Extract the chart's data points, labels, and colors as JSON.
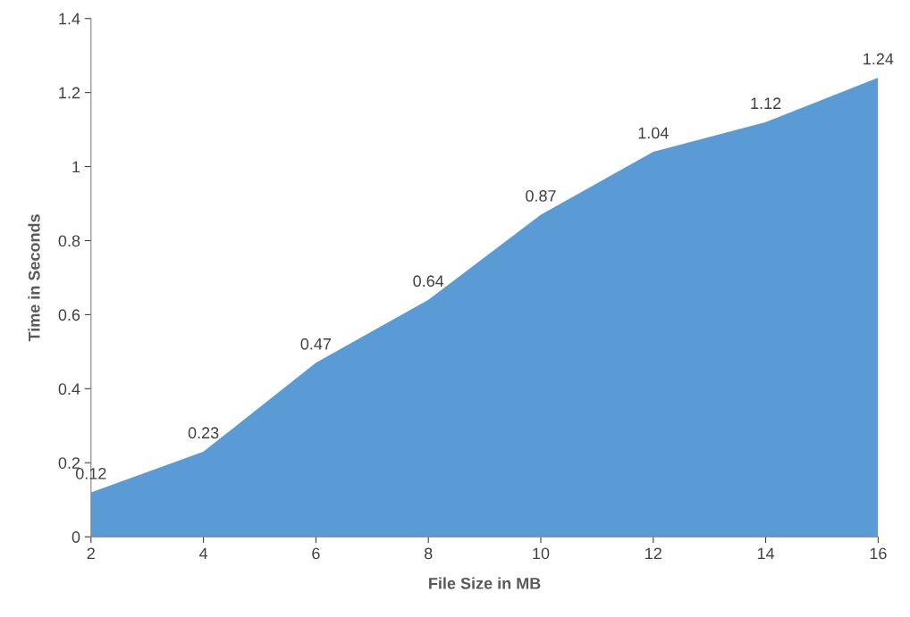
{
  "chart_data": {
    "type": "area",
    "xlabel": "File Size in MB",
    "ylabel": "Time in Seconds",
    "x": [
      2,
      4,
      6,
      8,
      10,
      12,
      14,
      16
    ],
    "series": [
      {
        "color": "#5b9bd5",
        "values": [
          0.12,
          0.23,
          0.47,
          0.64,
          0.87,
          1.04,
          1.12,
          1.24
        ]
      }
    ],
    "xlim": [
      2,
      16
    ],
    "xticks": [
      2,
      4,
      6,
      8,
      10,
      12,
      14,
      16
    ],
    "ylim": [
      0,
      1.4
    ],
    "yticks": [
      0,
      0.2,
      0.4,
      0.6,
      0.8,
      1,
      1.2,
      1.4
    ],
    "data_labels": true
  }
}
